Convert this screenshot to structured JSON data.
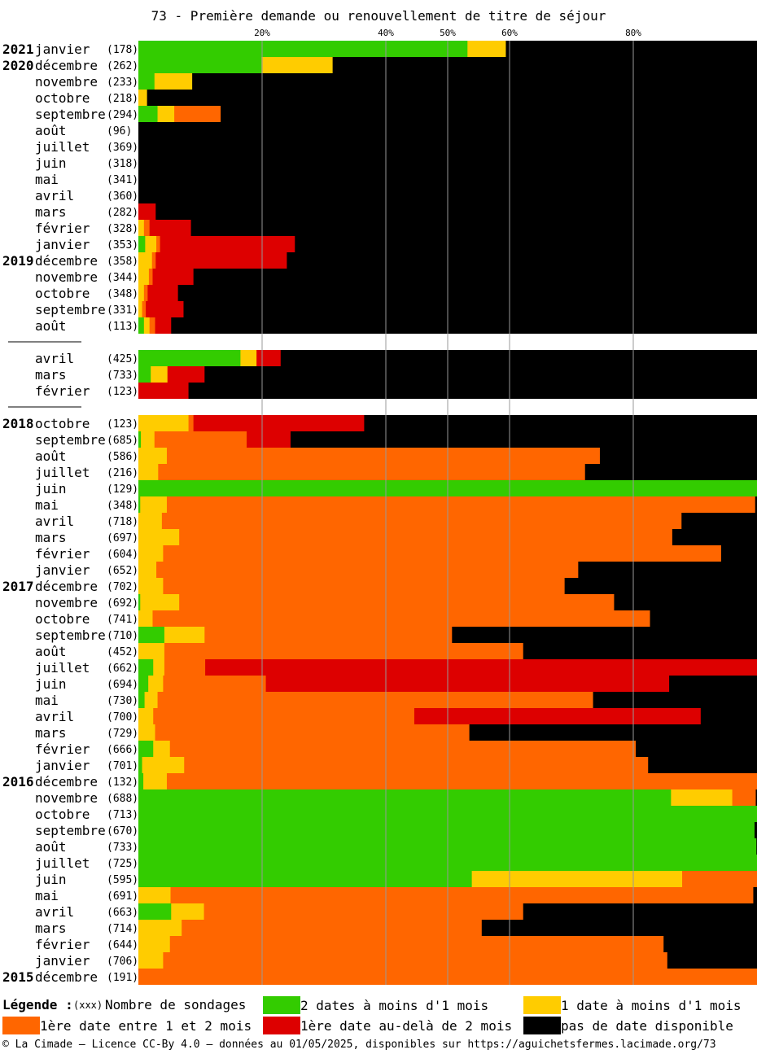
{
  "chart_data": {
    "type": "bar",
    "stacked": true,
    "orientation": "horizontal",
    "title": "73 - Première demande ou renouvellement de titre de séjour",
    "x_ticks": [
      20,
      40,
      50,
      60,
      80
    ],
    "x_tick_suffix": "%",
    "xlim": [
      0,
      100
    ],
    "grid": true,
    "series_order": [
      "deux_dates",
      "une_date",
      "entre_1_2",
      "au_dela",
      "pas_de_date"
    ],
    "colors": {
      "deux_dates": "#33cc00",
      "une_date": "#ffcc00",
      "entre_1_2": "#ff6600",
      "au_dela": "#dd0000",
      "pas_de_date": "#000000"
    },
    "blocks": [
      {
        "rows": [
          {
            "year": "2021",
            "month": "janvier",
            "count": "(178)",
            "values": [
              53.2,
              6.2,
              0,
              0,
              40.6
            ]
          },
          {
            "year": "2020",
            "month": "décembre",
            "count": "(262)",
            "values": [
              19.9,
              11.5,
              0,
              0,
              68.6
            ]
          },
          {
            "year": "",
            "month": "novembre",
            "count": "(233)",
            "values": [
              2.6,
              6.1,
              0,
              0,
              91.3
            ]
          },
          {
            "year": "",
            "month": "octobre",
            "count": "(218)",
            "values": [
              0,
              1.4,
              0,
              0,
              98.6
            ]
          },
          {
            "year": "",
            "month": "septembre",
            "count": "(294)",
            "values": [
              3.1,
              2.7,
              7.5,
              0,
              86.7
            ]
          },
          {
            "year": "",
            "month": "août",
            "count": "(96)",
            "values": [
              0,
              0,
              0,
              0,
              100
            ]
          },
          {
            "year": "",
            "month": "juillet",
            "count": "(369)",
            "values": [
              0,
              0,
              0,
              0,
              100
            ]
          },
          {
            "year": "",
            "month": "juin",
            "count": "(318)",
            "values": [
              0,
              0,
              0,
              0,
              100
            ]
          },
          {
            "year": "",
            "month": "mai",
            "count": "(341)",
            "values": [
              0,
              0,
              0,
              0,
              100
            ]
          },
          {
            "year": "",
            "month": "avril",
            "count": "(360)",
            "values": [
              0,
              0,
              0,
              0,
              100
            ]
          },
          {
            "year": "",
            "month": "mars",
            "count": "(282)",
            "values": [
              0,
              0,
              0,
              2.8,
              97.2
            ]
          },
          {
            "year": "",
            "month": "février",
            "count": "(328)",
            "values": [
              0,
              0.9,
              0.9,
              6.7,
              91.5
            ]
          },
          {
            "year": "",
            "month": "janvier",
            "count": "(353)",
            "values": [
              1.1,
              1.8,
              0.6,
              21.8,
              74.7
            ]
          },
          {
            "year": "2019",
            "month": "décembre",
            "count": "(358)",
            "values": [
              0,
              2.2,
              0.6,
              21.2,
              76
            ]
          },
          {
            "year": "",
            "month": "novembre",
            "count": "(344)",
            "values": [
              0,
              1.7,
              0.6,
              6.6,
              91.1
            ]
          },
          {
            "year": "",
            "month": "octobre",
            "count": "(348)",
            "values": [
              0,
              0.9,
              0.6,
              4.9,
              93.6
            ]
          },
          {
            "year": "",
            "month": "septembre",
            "count": "(331)",
            "values": [
              0,
              0.6,
              0.6,
              6.1,
              92.7
            ]
          },
          {
            "year": "",
            "month": "août",
            "count": "(113)",
            "values": [
              0.9,
              0.9,
              0.9,
              2.6,
              94.7
            ]
          }
        ]
      },
      {
        "rows": [
          {
            "year": "",
            "month": "avril",
            "count": "(425)",
            "values": [
              16.5,
              2.6,
              0,
              3.9,
              77
            ]
          },
          {
            "year": "",
            "month": "mars",
            "count": "(733)",
            "values": [
              2,
              2.7,
              0,
              6,
              89.3
            ]
          },
          {
            "year": "",
            "month": "février",
            "count": "(123)",
            "values": [
              0,
              0,
              0,
              8.1,
              91.9
            ]
          }
        ]
      },
      {
        "rows": [
          {
            "year": "2018",
            "month": "octobre",
            "count": "(123)",
            "values": [
              0,
              8.1,
              0.8,
              27.6,
              63.5
            ]
          },
          {
            "year": "",
            "month": "septembre",
            "count": "(685)",
            "values": [
              0.4,
              2.2,
              14.9,
              7.1,
              75.4
            ]
          },
          {
            "year": "",
            "month": "août",
            "count": "(586)",
            "values": [
              0,
              4.6,
              70,
              0,
              25.4
            ]
          },
          {
            "year": "",
            "month": "juillet",
            "count": "(216)",
            "values": [
              0,
              3.2,
              69,
              0,
              27.8
            ]
          },
          {
            "year": "",
            "month": "juin",
            "count": "(129)",
            "values": [
              100,
              0,
              0,
              0,
              0
            ]
          },
          {
            "year": "",
            "month": "mai",
            "count": "(348)",
            "values": [
              0.3,
              4.3,
              95.1,
              0,
              0.3
            ]
          },
          {
            "year": "",
            "month": "avril",
            "count": "(718)",
            "values": [
              0,
              3.8,
              84,
              0,
              12.2
            ]
          },
          {
            "year": "",
            "month": "mars",
            "count": "(697)",
            "values": [
              0,
              6.6,
              79.7,
              0,
              13.7
            ]
          },
          {
            "year": "",
            "month": "février",
            "count": "(604)",
            "values": [
              0,
              4,
              90.2,
              0,
              5.8
            ]
          },
          {
            "year": "",
            "month": "janvier",
            "count": "(652)",
            "values": [
              0,
              2.9,
              68.2,
              0,
              28.9
            ]
          },
          {
            "year": "2017",
            "month": "décembre",
            "count": "(702)",
            "values": [
              0,
              4,
              64.9,
              0,
              31.1
            ]
          },
          {
            "year": "",
            "month": "novembre",
            "count": "(692)",
            "values": [
              0.3,
              6.3,
              70.3,
              0,
              23.1
            ]
          },
          {
            "year": "",
            "month": "octobre",
            "count": "(741)",
            "values": [
              0,
              2.3,
              80.4,
              0,
              17.3
            ]
          },
          {
            "year": "",
            "month": "septembre",
            "count": "(710)",
            "values": [
              4.2,
              6.5,
              40,
              0,
              49.3
            ]
          },
          {
            "year": "",
            "month": "août",
            "count": "(452)",
            "values": [
              0,
              4.2,
              58,
              0,
              37.8
            ]
          },
          {
            "year": "",
            "month": "juillet",
            "count": "(662)",
            "values": [
              2.4,
              1.8,
              6.6,
              89.2,
              0
            ]
          },
          {
            "year": "",
            "month": "juin",
            "count": "(694)",
            "values": [
              1.6,
              2.4,
              16.6,
              65.2,
              14.2
            ]
          },
          {
            "year": "",
            "month": "mai",
            "count": "(730)",
            "values": [
              1,
              2.1,
              70.4,
              0,
              26.5
            ]
          },
          {
            "year": "",
            "month": "avril",
            "count": "(700)",
            "values": [
              0,
              2.4,
              42.2,
              46.3,
              9.1
            ]
          },
          {
            "year": "",
            "month": "mars",
            "count": "(729)",
            "values": [
              0,
              2.7,
              50.8,
              0,
              46.5
            ]
          },
          {
            "year": "",
            "month": "février",
            "count": "(666)",
            "values": [
              2.4,
              2.7,
              75.3,
              0,
              19.6
            ]
          },
          {
            "year": "",
            "month": "janvier",
            "count": "(701)",
            "values": [
              0.6,
              6.8,
              75,
              0,
              17.6
            ]
          },
          {
            "year": "2016",
            "month": "décembre",
            "count": "(132)",
            "values": [
              0.8,
              3.8,
              95.4,
              0,
              0
            ]
          },
          {
            "year": "",
            "month": "novembre",
            "count": "(688)",
            "values": [
              86.1,
              9.9,
              3.8,
              0,
              0.2
            ]
          },
          {
            "year": "",
            "month": "octobre",
            "count": "(713)",
            "values": [
              100,
              0,
              0,
              0,
              0
            ]
          },
          {
            "year": "",
            "month": "septembre",
            "count": "(670)",
            "values": [
              99.6,
              0,
              0,
              0,
              0.4
            ]
          },
          {
            "year": "",
            "month": "août",
            "count": "(733)",
            "values": [
              99.9,
              0,
              0,
              0,
              0.1
            ]
          },
          {
            "year": "",
            "month": "juillet",
            "count": "(725)",
            "values": [
              100,
              0,
              0,
              0,
              0
            ]
          },
          {
            "year": "",
            "month": "juin",
            "count": "(595)",
            "values": [
              53.9,
              34,
              12.1,
              0,
              0
            ]
          },
          {
            "year": "",
            "month": "mai",
            "count": "(691)",
            "values": [
              0,
              5.2,
              94.2,
              0,
              0.6
            ]
          },
          {
            "year": "",
            "month": "avril",
            "count": "(663)",
            "values": [
              5.3,
              5.3,
              51.6,
              0,
              37.8
            ]
          },
          {
            "year": "",
            "month": "mars",
            "count": "(714)",
            "values": [
              0,
              7,
              48.5,
              0,
              44.5
            ]
          },
          {
            "year": "",
            "month": "février",
            "count": "(644)",
            "values": [
              0,
              5.1,
              79.8,
              0,
              15.1
            ]
          },
          {
            "year": "",
            "month": "janvier",
            "count": "(706)",
            "values": [
              0,
              4,
              81.5,
              0,
              14.5
            ]
          },
          {
            "year": "2015",
            "month": "décembre",
            "count": "(191)",
            "values": [
              0,
              0,
              100,
              0,
              0
            ]
          }
        ]
      }
    ]
  },
  "legend": {
    "title": "Légende :",
    "xxx": "(xxx)",
    "count_label": "Nombre de sondages",
    "items": [
      {
        "label": "2 dates à moins d'1 mois"
      },
      {
        "label": "1 date à moins d'1 mois"
      },
      {
        "label": "1ère date entre 1 et 2 mois"
      },
      {
        "label": "1ère date au-delà de 2 mois"
      },
      {
        "label": "pas de date disponible"
      }
    ]
  },
  "footer": "© La Cimade – Licence CC-By 4.0 – données au 01/05/2025, disponibles sur https://aguichetsfermes.lacimade.org/73"
}
